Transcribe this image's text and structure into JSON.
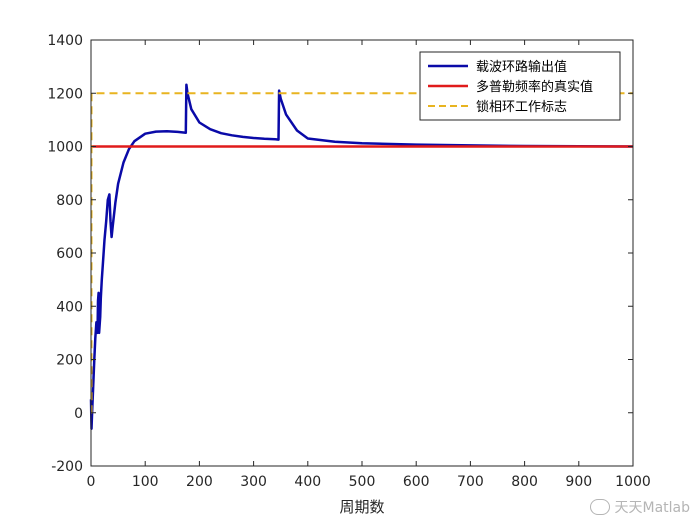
{
  "chart_data": {
    "type": "line",
    "xlabel": "周期数",
    "ylabel": "",
    "title": "",
    "xlim": [
      0,
      1000
    ],
    "ylim": [
      -200,
      1400
    ],
    "xticks": [
      0,
      100,
      200,
      300,
      400,
      500,
      600,
      700,
      800,
      900,
      1000
    ],
    "yticks": [
      -200,
      0,
      200,
      400,
      600,
      800,
      1000,
      1200,
      1400
    ],
    "grid": false,
    "legend_position": "top-right",
    "series": [
      {
        "name": "载波环路输出值",
        "color": "#0a0aa8",
        "style": "solid",
        "x": [
          0,
          1,
          2,
          4,
          6,
          8,
          10,
          12,
          13,
          14,
          15,
          17,
          18,
          20,
          22,
          25,
          28,
          31,
          34,
          36,
          38,
          40,
          45,
          50,
          60,
          70,
          80,
          100,
          120,
          140,
          160,
          175,
          176,
          178,
          185,
          200,
          220,
          240,
          260,
          280,
          300,
          320,
          340,
          346,
          347,
          350,
          360,
          380,
          400,
          450,
          500,
          600,
          700,
          800,
          900,
          1000
        ],
        "y": [
          50,
          -60,
          0,
          100,
          200,
          280,
          340,
          300,
          420,
          450,
          300,
          360,
          430,
          500,
          560,
          650,
          720,
          800,
          820,
          720,
          660,
          700,
          790,
          860,
          940,
          990,
          1020,
          1048,
          1056,
          1057,
          1055,
          1052,
          1232,
          1200,
          1140,
          1090,
          1065,
          1050,
          1042,
          1036,
          1032,
          1029,
          1027,
          1026,
          1210,
          1180,
          1120,
          1060,
          1030,
          1018,
          1012,
          1007,
          1004,
          1002,
          1001,
          1000
        ]
      },
      {
        "name": "多普勒频率的真实值",
        "color": "#e01b1b",
        "style": "solid",
        "x": [
          0,
          1000
        ],
        "y": [
          1000,
          1000
        ]
      },
      {
        "name": "锁相环工作标志",
        "color": "#e8b420",
        "style": "dashed",
        "x": [
          0,
          1,
          1,
          1000
        ],
        "y": [
          0,
          0,
          1200,
          1200
        ]
      }
    ]
  },
  "watermark": {
    "text": "天天Matlab",
    "icon": "wechat-icon"
  }
}
